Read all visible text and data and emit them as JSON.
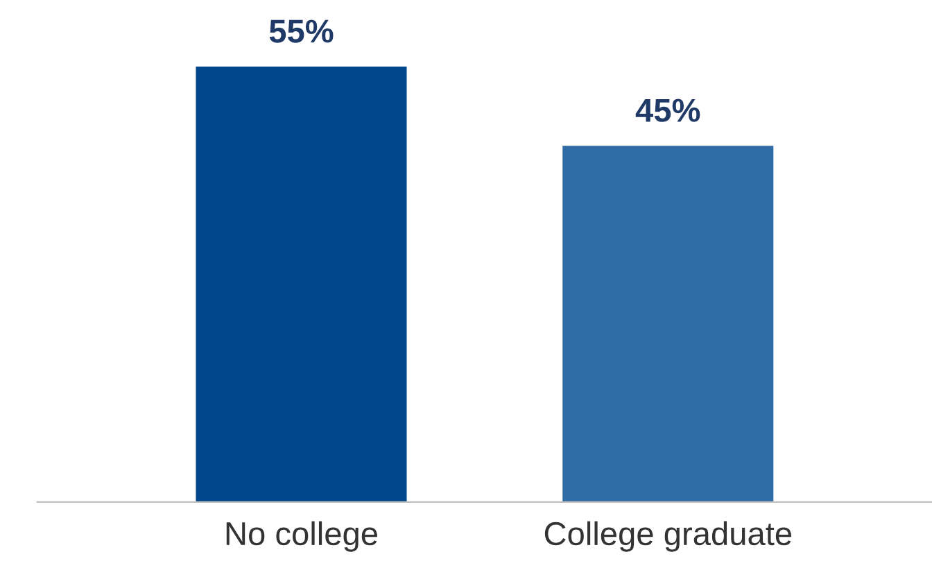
{
  "chart_data": {
    "type": "bar",
    "categories": [
      "No college",
      "College graduate"
    ],
    "values": [
      55,
      45
    ],
    "colors": [
      "#00468b",
      "#2f6ca6"
    ],
    "value_labels": [
      "55%",
      "45%"
    ]
  }
}
